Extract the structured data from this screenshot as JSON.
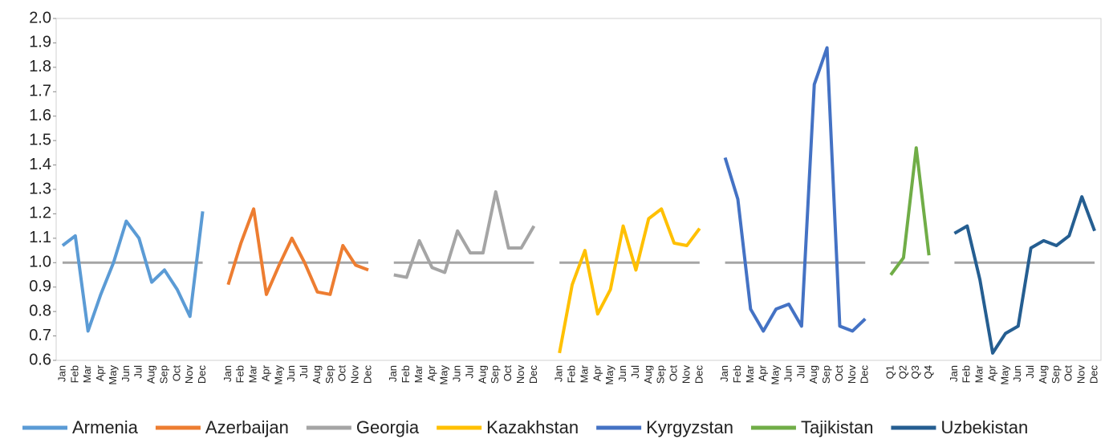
{
  "chart_data": {
    "type": "line",
    "categories": [
      "Jan",
      "Feb",
      "Mar",
      "Apr",
      "May",
      "Jun",
      "Jul",
      "Aug",
      "Sep",
      "Oct",
      "Nov",
      "Dec",
      null,
      "Jan",
      "Feb",
      "Mar",
      "Apr",
      "May",
      "Jun",
      "Jul",
      "Aug",
      "Sep",
      "Oct",
      "Nov",
      "Dec",
      null,
      "Jan",
      "Feb",
      "Mar",
      "Apr",
      "May",
      "Jun",
      "Jul",
      "Aug",
      "Sep",
      "Oct",
      "Nov",
      "Dec",
      null,
      "Jan",
      "Feb",
      "Mar",
      "Apr",
      "May",
      "Jun",
      "Jul",
      "Aug",
      "Sep",
      "Oct",
      "Nov",
      "Dec",
      null,
      "Jan",
      "Feb",
      "Mar",
      "Apr",
      "May",
      "Jun",
      "Jul",
      "Aug",
      "Sep",
      "Oct",
      "Nov",
      "Dec",
      null,
      "Q1",
      "Q2",
      "Q3",
      "Q4",
      null,
      "Jan",
      "Feb",
      "Mar",
      "Apr",
      "May",
      "Jun",
      "Jul",
      "Aug",
      "Sep",
      "Oct",
      "Nov",
      "Dec"
    ],
    "series": [
      {
        "name": "Armenia",
        "color": "#5b9bd5",
        "values": [
          1.07,
          1.11,
          0.72,
          0.87,
          1.0,
          1.17,
          1.1,
          0.92,
          0.97,
          0.89,
          0.78,
          1.21,
          null,
          null,
          null,
          null,
          null,
          null,
          null,
          null,
          null,
          null,
          null,
          null,
          null,
          null,
          null,
          null,
          null,
          null,
          null,
          null,
          null,
          null,
          null,
          null,
          null,
          null,
          null,
          null,
          null,
          null,
          null,
          null,
          null,
          null,
          null,
          null,
          null,
          null,
          null,
          null,
          null,
          null,
          null,
          null,
          null,
          null,
          null,
          null,
          null,
          null,
          null,
          null,
          null,
          null,
          null,
          null,
          null,
          null,
          null,
          null,
          null,
          null,
          null,
          null,
          null,
          null,
          null,
          null,
          null,
          null
        ]
      },
      {
        "name": "Azerbaijan",
        "color": "#ed7d31",
        "values": [
          null,
          null,
          null,
          null,
          null,
          null,
          null,
          null,
          null,
          null,
          null,
          null,
          null,
          0.91,
          1.08,
          1.22,
          0.87,
          0.99,
          1.1,
          1.0,
          0.88,
          0.87,
          1.07,
          0.99,
          0.97,
          null,
          null,
          null,
          null,
          null,
          null,
          null,
          null,
          null,
          null,
          null,
          null,
          null,
          null,
          null,
          null,
          null,
          null,
          null,
          null,
          null,
          null,
          null,
          null,
          null,
          null,
          null,
          null,
          null,
          null,
          null,
          null,
          null,
          null,
          null,
          null,
          null,
          null,
          null,
          null,
          null,
          null,
          null,
          null,
          null,
          null,
          null,
          null,
          null,
          null,
          null,
          null,
          null,
          null,
          null,
          null,
          null
        ]
      },
      {
        "name": "Georgia",
        "color": "#a5a5a5",
        "values": [
          null,
          null,
          null,
          null,
          null,
          null,
          null,
          null,
          null,
          null,
          null,
          null,
          null,
          null,
          null,
          null,
          null,
          null,
          null,
          null,
          null,
          null,
          null,
          null,
          null,
          null,
          0.95,
          0.94,
          1.09,
          0.98,
          0.96,
          1.13,
          1.04,
          1.04,
          1.29,
          1.06,
          1.06,
          1.15,
          null,
          null,
          null,
          null,
          null,
          null,
          null,
          null,
          null,
          null,
          null,
          null,
          null,
          null,
          null,
          null,
          null,
          null,
          null,
          null,
          null,
          null,
          null,
          null,
          null,
          null,
          null,
          null,
          null,
          null,
          null,
          null,
          null,
          null,
          null,
          null,
          null,
          null,
          null,
          null,
          null,
          null,
          null,
          null
        ]
      },
      {
        "name": "Kazakhstan",
        "color": "#ffc000",
        "values": [
          null,
          null,
          null,
          null,
          null,
          null,
          null,
          null,
          null,
          null,
          null,
          null,
          null,
          null,
          null,
          null,
          null,
          null,
          null,
          null,
          null,
          null,
          null,
          null,
          null,
          null,
          null,
          null,
          null,
          null,
          null,
          null,
          null,
          null,
          null,
          null,
          null,
          null,
          null,
          0.63,
          0.91,
          1.05,
          0.79,
          0.89,
          1.15,
          0.97,
          1.18,
          1.22,
          1.08,
          1.07,
          1.14,
          null,
          null,
          null,
          null,
          null,
          null,
          null,
          null,
          null,
          null,
          null,
          null,
          null,
          null,
          null,
          null,
          null,
          null,
          null,
          null,
          null,
          null,
          null,
          null,
          null,
          null,
          null,
          null,
          null,
          null,
          null
        ]
      },
      {
        "name": "Kyrgyzstan",
        "color": "#4472c4",
        "values": [
          null,
          null,
          null,
          null,
          null,
          null,
          null,
          null,
          null,
          null,
          null,
          null,
          null,
          null,
          null,
          null,
          null,
          null,
          null,
          null,
          null,
          null,
          null,
          null,
          null,
          null,
          null,
          null,
          null,
          null,
          null,
          null,
          null,
          null,
          null,
          null,
          null,
          null,
          null,
          null,
          null,
          null,
          null,
          null,
          null,
          null,
          null,
          null,
          null,
          null,
          null,
          null,
          1.43,
          1.26,
          0.81,
          0.72,
          0.81,
          0.83,
          0.74,
          1.73,
          1.88,
          0.74,
          0.72,
          0.77,
          null,
          null,
          null,
          null,
          null,
          null,
          null,
          null,
          null,
          null,
          null,
          null,
          null,
          null,
          null,
          null,
          null,
          null
        ]
      },
      {
        "name": "Tajikistan",
        "color": "#70ad47",
        "values": [
          null,
          null,
          null,
          null,
          null,
          null,
          null,
          null,
          null,
          null,
          null,
          null,
          null,
          null,
          null,
          null,
          null,
          null,
          null,
          null,
          null,
          null,
          null,
          null,
          null,
          null,
          null,
          null,
          null,
          null,
          null,
          null,
          null,
          null,
          null,
          null,
          null,
          null,
          null,
          null,
          null,
          null,
          null,
          null,
          null,
          null,
          null,
          null,
          null,
          null,
          null,
          null,
          null,
          null,
          null,
          null,
          null,
          null,
          null,
          null,
          null,
          null,
          null,
          null,
          null,
          0.95,
          1.02,
          1.47,
          1.03,
          null,
          null,
          null,
          null,
          null,
          null,
          null,
          null,
          null,
          null,
          null,
          null,
          null
        ]
      },
      {
        "name": "Uzbekistan",
        "color": "#255e91",
        "values": [
          null,
          null,
          null,
          null,
          null,
          null,
          null,
          null,
          null,
          null,
          null,
          null,
          null,
          null,
          null,
          null,
          null,
          null,
          null,
          null,
          null,
          null,
          null,
          null,
          null,
          null,
          null,
          null,
          null,
          null,
          null,
          null,
          null,
          null,
          null,
          null,
          null,
          null,
          null,
          null,
          null,
          null,
          null,
          null,
          null,
          null,
          null,
          null,
          null,
          null,
          null,
          null,
          null,
          null,
          null,
          null,
          null,
          null,
          null,
          null,
          null,
          null,
          null,
          null,
          null,
          null,
          null,
          null,
          null,
          null,
          1.12,
          1.15,
          0.93,
          0.63,
          0.71,
          0.74,
          1.06,
          1.09,
          1.07,
          1.11,
          1.27,
          1.13
        ]
      }
    ],
    "reference": 1,
    "reference_color": "#a5a5a5",
    "ylim": [
      0.6,
      2.0
    ],
    "yticks": [
      0.6,
      0.7,
      0.8,
      0.9,
      {
        "value": 1,
        "label": "1.0"
      },
      1.1,
      1.2,
      1.3,
      1.4,
      1.5,
      1.6,
      1.7,
      1.8,
      1.9,
      {
        "value": 2,
        "label": "2.0"
      }
    ],
    "legend": "bottom"
  }
}
